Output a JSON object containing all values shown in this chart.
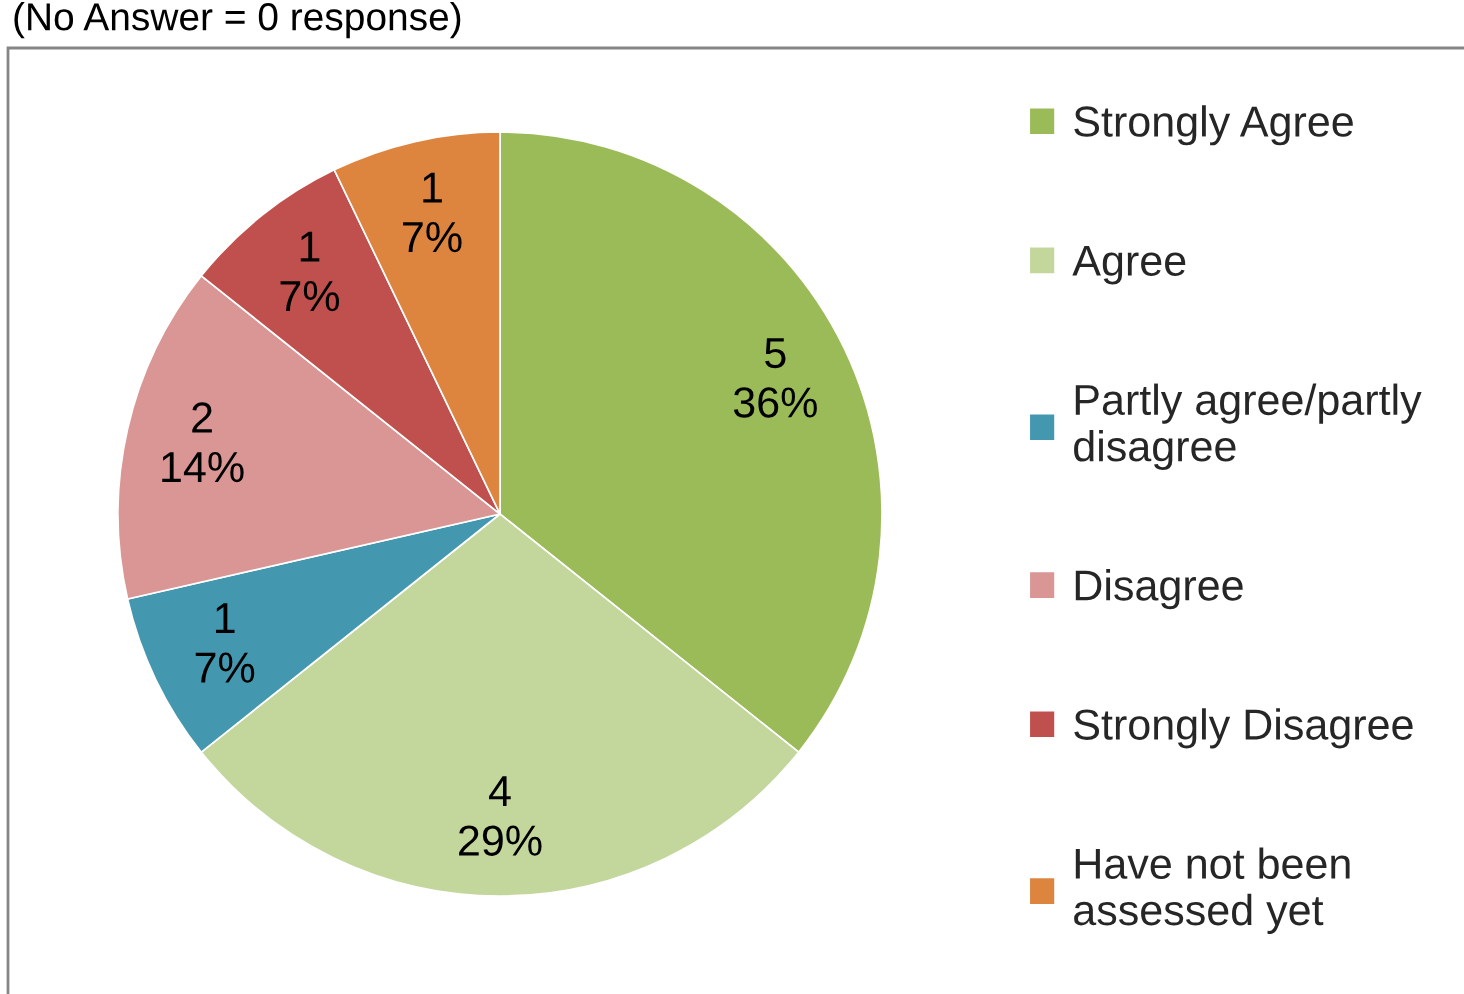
{
  "chart_data": {
    "type": "pie",
    "categories": [
      "Strongly Agree",
      "Agree",
      "Partly agree/partly\ndisagree",
      "Disagree",
      "Strongly Disagree",
      "Have not been\nassessed yet"
    ],
    "values": [
      5,
      4,
      1,
      2,
      1,
      1
    ],
    "value_labels": [
      "5\n36%",
      "4\n29%",
      "1\n7%",
      "2\n14%",
      "1\n7%",
      "1\n7%"
    ],
    "colors": [
      "#9bbb59",
      "#c3d69b",
      "#4398b0",
      "#d99694",
      "#c0504d",
      "#dd843f"
    ],
    "legend": "right",
    "annotations": [
      "(No Answer = 0 response)"
    ]
  }
}
